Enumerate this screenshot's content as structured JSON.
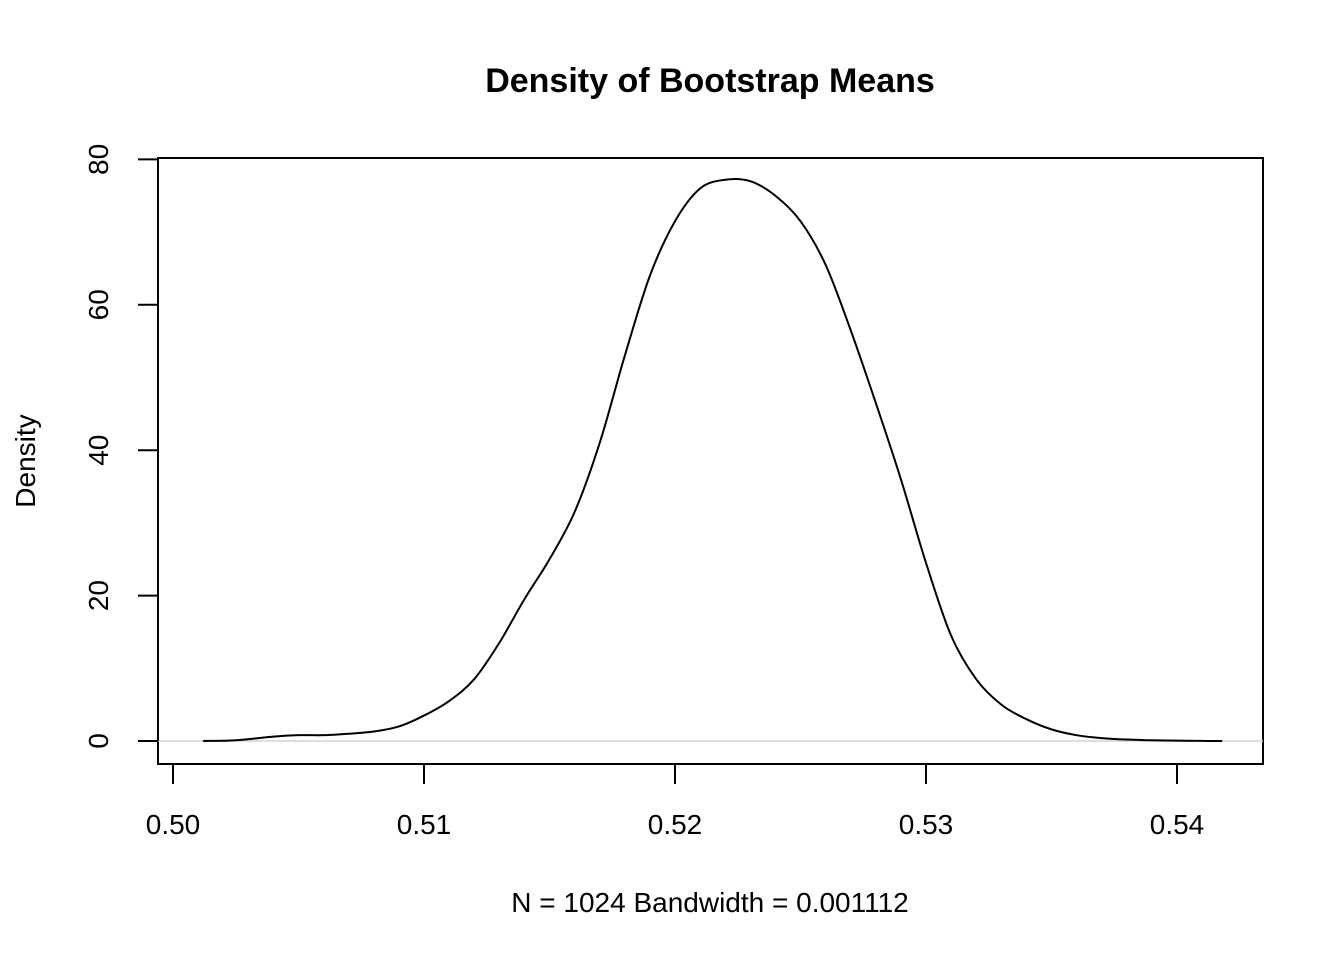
{
  "chart_data": {
    "type": "line",
    "title": "Density of Bootstrap Means",
    "xlabel": "N = 1024   Bandwidth = 0.001112",
    "ylabel": "Density",
    "xlim": [
      0.5,
      0.542
    ],
    "ylim": [
      0,
      80
    ],
    "x_ticks": [
      "0.50",
      "0.51",
      "0.52",
      "0.53",
      "0.54"
    ],
    "y_ticks": [
      "0",
      "20",
      "40",
      "60",
      "80"
    ],
    "zero_line": true,
    "colors": {
      "line": "#000000",
      "zero_line": "#d3d3d3"
    },
    "series": [
      {
        "x": [
          0.5012,
          0.5025,
          0.504,
          0.505,
          0.506,
          0.507,
          0.508,
          0.509,
          0.51,
          0.511,
          0.512,
          0.513,
          0.514,
          0.515,
          0.516,
          0.517,
          0.518,
          0.519,
          0.52,
          0.521,
          0.522,
          0.523,
          0.524,
          0.525,
          0.526,
          0.527,
          0.528,
          0.529,
          0.53,
          0.531,
          0.532,
          0.533,
          0.534,
          0.535,
          0.536,
          0.537,
          0.538,
          0.539,
          0.54,
          0.541,
          0.5418
        ],
        "y": [
          0,
          0.1,
          0.6,
          0.8,
          0.8,
          1.0,
          1.3,
          2.0,
          3.5,
          5.5,
          8.5,
          13.5,
          19.5,
          25.0,
          31.5,
          41.0,
          53.0,
          64.0,
          71.5,
          76.0,
          77.2,
          77.0,
          75.0,
          71.5,
          65.5,
          56.5,
          46.5,
          36.0,
          24.5,
          14.5,
          8.5,
          5.0,
          3.0,
          1.6,
          0.8,
          0.4,
          0.2,
          0.1,
          0.05,
          0.01,
          0
        ]
      }
    ]
  }
}
